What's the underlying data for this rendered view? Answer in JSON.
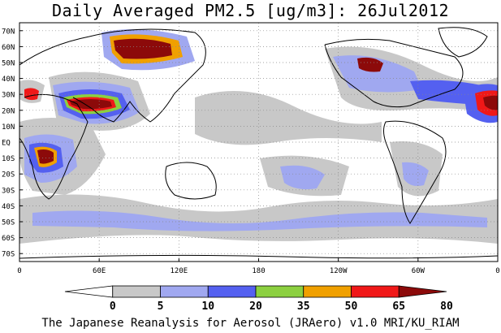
{
  "title": "Daily Averaged PM2.5 [ug/m3]: 26Jul2012",
  "footer": "The Japanese Reanalysis for Aerosol (JRAero) v1.0 MRI/KU_RIAM",
  "map": {
    "projection": "cylindrical-equidistant",
    "lon_range": [
      0,
      360
    ],
    "lat_range": [
      -75,
      75
    ],
    "grid": true,
    "lat_labels": [
      "70N",
      "60N",
      "50N",
      "40N",
      "30N",
      "20N",
      "10N",
      "EQ",
      "10S",
      "20S",
      "30S",
      "40S",
      "50S",
      "60S",
      "70S"
    ],
    "lat_values": [
      70,
      60,
      50,
      40,
      30,
      20,
      10,
      0,
      -10,
      -20,
      -30,
      -40,
      -50,
      -60,
      -70
    ],
    "lon_labels": [
      "0",
      "60E",
      "120E",
      "180",
      "120W",
      "60W",
      "0"
    ],
    "lon_values": [
      0,
      60,
      120,
      180,
      240,
      300,
      360
    ]
  },
  "colorbar": {
    "levels": [
      "0",
      "5",
      "10",
      "20",
      "35",
      "50",
      "65",
      "80"
    ],
    "colors": [
      "#ffffff",
      "#c8c8c8",
      "#a0a8f0",
      "#5460f0",
      "#8cd040",
      "#f0a000",
      "#f01818",
      "#8c0a0a"
    ]
  }
}
